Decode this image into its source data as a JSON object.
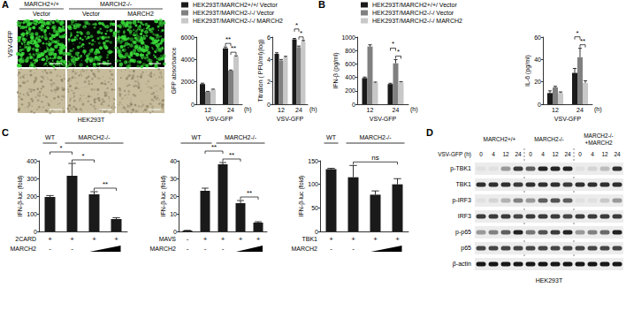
{
  "panels": [
    "A",
    "B",
    "C",
    "D"
  ],
  "microscopy": {
    "groups": [
      {
        "label": "MARCH2+/+",
        "span": 1
      },
      {
        "label": "MARCH2-/-",
        "span": 2
      }
    ],
    "columns": [
      "Vector",
      "Vector",
      "MARCH2"
    ],
    "row_label": "VSV-GFP",
    "cell_line": "HEK293T",
    "fluorescence": [
      0.9,
      0.45,
      0.7
    ]
  },
  "chart_data": [
    {
      "type": "bar",
      "ylabel": "GFP absorbance",
      "xlabel": "VSV-GFP",
      "xunit": "(h)",
      "categories": [
        "12",
        "24"
      ],
      "series": [
        {
          "name": "HEK293T/MARCH2+/+/ Vector",
          "color": "#1a1a1a",
          "values": [
            1800,
            5000
          ],
          "errors": [
            80,
            120
          ]
        },
        {
          "name": "HEK293T/MARCH2-/-/ Vector",
          "color": "#808080",
          "values": [
            1100,
            3000
          ],
          "errors": [
            50,
            60
          ]
        },
        {
          "name": "HEK293T/MARCH2-/-/ MARCH2",
          "color": "#c8c8c8",
          "values": [
            1300,
            4250
          ],
          "errors": [
            50,
            80
          ]
        }
      ],
      "ylim": [
        0,
        6000
      ],
      "yticks": [
        0,
        2000,
        4000,
        6000
      ],
      "grid": false,
      "legend": "top",
      "annotations": [
        {
          "text": "**",
          "category": "24",
          "between": [
            1,
            2
          ]
        },
        {
          "text": "**",
          "category": "24",
          "between": [
            0,
            1
          ]
        }
      ]
    },
    {
      "type": "bar",
      "ylabel": "Titration ( PFU/ml)(log)",
      "xlabel": "VSV-GFP",
      "xunit": "(h)",
      "categories": [
        "12",
        "24"
      ],
      "series": [
        {
          "name": "HEK293T/MARCH2+/+/ Vector",
          "color": "#1a1a1a",
          "values": [
            4.5,
            5.8
          ],
          "errors": [
            0.1,
            0.08
          ]
        },
        {
          "name": "HEK293T/MARCH2-/-/ Vector",
          "color": "#808080",
          "values": [
            3.9,
            5.1
          ],
          "errors": [
            0.1,
            0.1
          ]
        },
        {
          "name": "HEK293T/MARCH2-/-/ MARCH2",
          "color": "#c8c8c8",
          "values": [
            4.2,
            5.6
          ],
          "errors": [
            0.08,
            0.1
          ]
        }
      ],
      "ylim": [
        0,
        6
      ],
      "yticks": [
        0,
        2,
        4,
        6
      ],
      "grid": false,
      "annotations": [
        {
          "text": "*",
          "category": "24",
          "between": [
            1,
            2
          ]
        },
        {
          "text": "*",
          "category": "24",
          "between": [
            0,
            1
          ]
        }
      ]
    },
    {
      "type": "bar",
      "ylabel": "IFN-β (pg/ml)",
      "xlabel": "VSV-GFP",
      "xunit": "(h)",
      "categories": [
        "12",
        "24"
      ],
      "series": [
        {
          "name": "HEK293T/MARCH2+/+/ Vector",
          "color": "#1a1a1a",
          "values": [
            390,
            300
          ],
          "errors": [
            15,
            12
          ]
        },
        {
          "name": "HEK293T/MARCH2-/-/ Vector",
          "color": "#808080",
          "values": [
            860,
            610
          ],
          "errors": [
            25,
            55
          ]
        },
        {
          "name": "HEK293T/MARCH2-/-/ MARCH2",
          "color": "#c8c8c8",
          "values": [
            320,
            325
          ],
          "errors": [
            10,
            12
          ]
        }
      ],
      "ylim": [
        0,
        1000
      ],
      "yticks": [
        0,
        200,
        400,
        600,
        800,
        1000
      ],
      "grid": false,
      "legend": "top",
      "annotations": [
        {
          "text": "*",
          "category": "24",
          "between": [
            1,
            2
          ]
        },
        {
          "text": "*",
          "category": "24",
          "between": [
            0,
            1
          ]
        }
      ]
    },
    {
      "type": "bar",
      "ylabel": "IL-6 (pg/ml)",
      "xlabel": "VSV-GFP",
      "xunit": "(h)",
      "categories": [
        "12",
        "24"
      ],
      "series": [
        {
          "name": "HEK293T/MARCH2+/+/ Vector",
          "color": "#1a1a1a",
          "values": [
            10,
            28
          ],
          "errors": [
            2,
            4
          ]
        },
        {
          "name": "HEK293T/MARCH2-/-/ Vector",
          "color": "#808080",
          "values": [
            15,
            42
          ],
          "errors": [
            1,
            8
          ]
        },
        {
          "name": "HEK293T/MARCH2-/-/ MARCH2",
          "color": "#c8c8c8",
          "values": [
            10,
            19
          ],
          "errors": [
            1,
            2
          ]
        }
      ],
      "ylim": [
        0,
        60
      ],
      "yticks": [
        0,
        20,
        40,
        60
      ],
      "grid": false,
      "annotations": [
        {
          "text": "**",
          "category": "24",
          "between": [
            1,
            2
          ]
        },
        {
          "text": "*",
          "category": "24",
          "between": [
            0,
            1
          ]
        }
      ]
    },
    {
      "type": "bar",
      "ylabel": "IFN-β-luc (fold)",
      "categories": [
        null,
        null,
        null,
        null
      ],
      "values": [
        195,
        315,
        210,
        70
      ],
      "errors": [
        8,
        70,
        15,
        8
      ],
      "color": "#1a1a1a",
      "ylim": [
        0,
        400
      ],
      "yticks": [
        0,
        100,
        200,
        300,
        400
      ],
      "grid": false,
      "tick_labels": "y",
      "groups": [
        {
          "label": "WT",
          "span": 1
        },
        {
          "label": "MARCH2-/-",
          "span": 3
        }
      ],
      "conditions": [
        {
          "label": "2CARD",
          "marks": [
            "+",
            "+",
            "+",
            "+"
          ]
        },
        {
          "label": "MARCH2",
          "marks": [
            "-",
            "-",
            null,
            null
          ]
        }
      ],
      "annotations": [
        {
          "text": "**",
          "between": [
            2,
            3
          ]
        },
        {
          "text": "*",
          "between": [
            1,
            2
          ]
        },
        {
          "text": "*",
          "between": [
            0,
            1
          ]
        }
      ]
    },
    {
      "type": "bar",
      "ylabel": "IFN-β-luc (fold)",
      "categories": [
        null,
        null,
        null,
        null,
        null
      ],
      "values": [
        0.5,
        23,
        38,
        16,
        5
      ],
      "errors": [
        0.1,
        1.5,
        1,
        1.5,
        0.5
      ],
      "color": "#1a1a1a",
      "ylim": [
        0,
        40
      ],
      "yticks": [
        0,
        10,
        20,
        30,
        40
      ],
      "grid": false,
      "tick_labels": "y",
      "groups": [
        {
          "label": "WT",
          "span": 2
        },
        {
          "label": "MARCH2-/-",
          "span": 3
        }
      ],
      "conditions": [
        {
          "label": "MAVS",
          "marks": [
            "-",
            "+",
            "+",
            "+",
            "+"
          ]
        },
        {
          "label": "MARCH2",
          "marks": [
            "-",
            "-",
            "-",
            null,
            null
          ]
        }
      ],
      "annotations": [
        {
          "text": "**",
          "between": [
            3,
            4
          ]
        },
        {
          "text": "**",
          "between": [
            2,
            3
          ]
        },
        {
          "text": "**",
          "between": [
            1,
            2
          ]
        }
      ]
    },
    {
      "type": "bar",
      "ylabel": "IFN-β-luc (fold)",
      "categories": [
        null,
        null,
        null,
        null
      ],
      "values": [
        132,
        115,
        78,
        100
      ],
      "errors": [
        2,
        25,
        8,
        12
      ],
      "color": "#1a1a1a",
      "ylim": [
        0,
        150
      ],
      "yticks": [
        0,
        50,
        100,
        150
      ],
      "grid": false,
      "tick_labels": "y",
      "groups": [
        {
          "label": "WT",
          "span": 1
        },
        {
          "label": "MARCH2-/-",
          "span": 3
        }
      ],
      "conditions": [
        {
          "label": "TBK1",
          "marks": [
            "+",
            "+",
            "+",
            "+"
          ]
        },
        {
          "label": "MARCH2",
          "marks": [
            "-",
            "-",
            null,
            null
          ]
        }
      ],
      "annotations": [
        {
          "text": "ns",
          "between": [
            1,
            3
          ]
        }
      ]
    }
  ],
  "western_blot": {
    "groups": [
      {
        "label": "MARCH2+/+",
        "span": 4
      },
      {
        "label": "MARCH2-/-",
        "span": 4
      },
      {
        "label": "MARCH2-/-\n+MARCH2",
        "span": 4
      }
    ],
    "time_label": "VSV-GFP (h)",
    "times": [
      0,
      4,
      12,
      24,
      0,
      4,
      12,
      24,
      0,
      4,
      12,
      24
    ],
    "rows": [
      {
        "label": "p-TBK1",
        "intensity": [
          0.05,
          0.05,
          0.35,
          0.75,
          0.6,
          0.85,
          0.85,
          0.85,
          0.05,
          0.1,
          0.2,
          0.8
        ]
      },
      {
        "label": "TBK1",
        "intensity": [
          0.8,
          0.8,
          0.8,
          0.75,
          0.8,
          0.8,
          0.8,
          0.75,
          0.8,
          0.8,
          0.8,
          0.8
        ]
      },
      {
        "label": "p-IRF3",
        "intensity": [
          0.05,
          0.1,
          0.25,
          0.45,
          0.35,
          0.6,
          0.65,
          0.6,
          0.05,
          0.05,
          0.15,
          0.35
        ]
      },
      {
        "label": "IRF3",
        "intensity": [
          0.75,
          0.75,
          0.75,
          0.7,
          0.75,
          0.75,
          0.75,
          0.7,
          0.75,
          0.75,
          0.75,
          0.75
        ]
      },
      {
        "label": "p-p65",
        "intensity": [
          0.35,
          0.45,
          0.6,
          0.85,
          0.5,
          0.65,
          0.75,
          0.85,
          0.35,
          0.45,
          0.55,
          0.85
        ]
      },
      {
        "label": "p65",
        "intensity": [
          0.7,
          0.7,
          0.7,
          0.7,
          0.7,
          0.7,
          0.7,
          0.7,
          0.7,
          0.7,
          0.7,
          0.7
        ]
      },
      {
        "label": "β-actin",
        "intensity": [
          0.9,
          0.9,
          0.9,
          0.9,
          0.9,
          0.9,
          0.9,
          0.9,
          0.9,
          0.9,
          0.9,
          0.9
        ]
      }
    ],
    "cell_line": "HEK293T"
  }
}
